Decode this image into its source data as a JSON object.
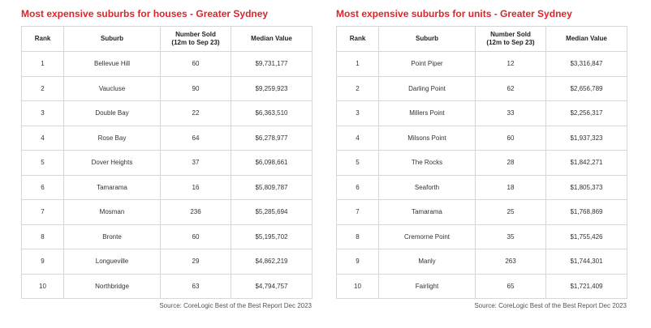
{
  "houses": {
    "title": "Most expensive suburbs for houses - Greater Sydney",
    "headers": [
      "Rank",
      "Suburb",
      "Number Sold\n(12m to Sep 23)",
      "Median Value"
    ],
    "rows": [
      [
        "1",
        "Bellevue Hill",
        "60",
        "$9,731,177"
      ],
      [
        "2",
        "Vaucluse",
        "90",
        "$9,259,923"
      ],
      [
        "3",
        "Double Bay",
        "22",
        "$6,363,510"
      ],
      [
        "4",
        "Rose Bay",
        "64",
        "$6,278,977"
      ],
      [
        "5",
        "Dover Heights",
        "37",
        "$6,098,661"
      ],
      [
        "6",
        "Tamarama",
        "16",
        "$5,809,787"
      ],
      [
        "7",
        "Mosman",
        "236",
        "$5,285,694"
      ],
      [
        "8",
        "Bronte",
        "60",
        "$5,195,702"
      ],
      [
        "9",
        "Longueville",
        "29",
        "$4,862,219"
      ],
      [
        "10",
        "Northbridge",
        "63",
        "$4,794,757"
      ]
    ],
    "source": "Source: CoreLogic Best of the Best Report Dec 2023"
  },
  "units": {
    "title": "Most expensive suburbs for units - Greater Sydney",
    "headers": [
      "Rank",
      "Suburb",
      "Number Sold\n(12m to Sep 23)",
      "Median Value"
    ],
    "rows": [
      [
        "1",
        "Point Piper",
        "12",
        "$3,316,847"
      ],
      [
        "2",
        "Darling Point",
        "62",
        "$2,656,789"
      ],
      [
        "3",
        "Millers Point",
        "33",
        "$2,256,317"
      ],
      [
        "4",
        "Milsons Point",
        "60",
        "$1,937,323"
      ],
      [
        "5",
        "The Rocks",
        "28",
        "$1,842,271"
      ],
      [
        "6",
        "Seaforth",
        "18",
        "$1,805,373"
      ],
      [
        "7",
        "Tamarama",
        "25",
        "$1,768,869"
      ],
      [
        "8",
        "Cremorne Point",
        "35",
        "$1,755,426"
      ],
      [
        "9",
        "Manly",
        "263",
        "$1,744,301"
      ],
      [
        "10",
        "Fairlight",
        "65",
        "$1,721,409"
      ]
    ],
    "source": "Source: CoreLogic Best of the Best Report Dec 2023"
  },
  "colors": {
    "title": "#d9262c",
    "border": "#d7d7d7"
  }
}
